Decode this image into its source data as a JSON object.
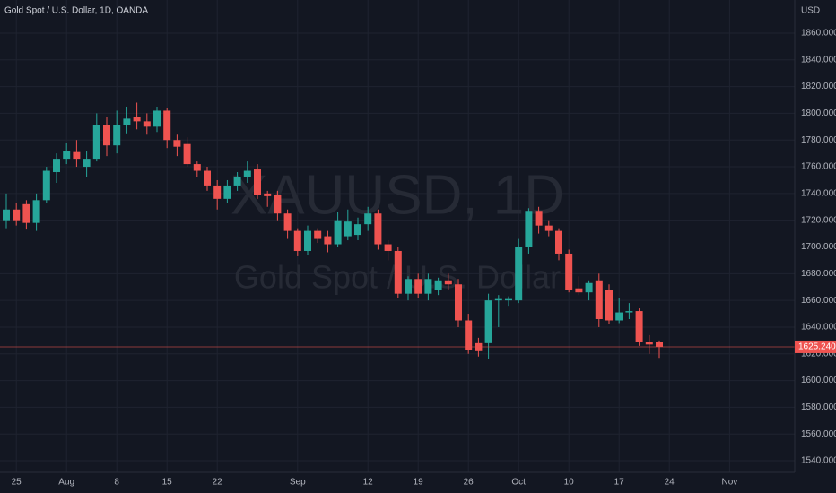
{
  "chart_data": {
    "type": "candlestick",
    "title": "Gold Spot / U.S. Dollar, 1D, OANDA",
    "watermark": {
      "symbol": "XAUUSD, 1D",
      "description": "Gold Spot / U.S. Dollar"
    },
    "y_axis_unit": "USD",
    "categories": [
      null,
      "25",
      null,
      null,
      null,
      null,
      "Aug",
      null,
      null,
      null,
      null,
      "8",
      null,
      null,
      null,
      null,
      "15",
      null,
      null,
      null,
      null,
      "22",
      null,
      null,
      null,
      null,
      null,
      null,
      null,
      "Sep",
      null,
      null,
      null,
      null,
      null,
      null,
      "12",
      null,
      null,
      null,
      null,
      "19",
      null,
      null,
      null,
      null,
      "26",
      null,
      null,
      null,
      null,
      "Oct",
      null,
      null,
      null,
      null,
      "10",
      null,
      null,
      null,
      null,
      "17",
      null,
      null,
      null,
      null,
      "24",
      null,
      null,
      null,
      null,
      null,
      "Nov",
      null,
      null,
      null,
      null,
      null,
      null
    ],
    "open": [
      1720,
      1728,
      1732,
      1718,
      1735,
      1756,
      1766,
      1771,
      1760,
      1766,
      1791,
      1776,
      1791,
      1797,
      1794,
      1790,
      1802,
      1780,
      1777,
      1762,
      1757,
      1746,
      1736,
      1746,
      1752,
      1758,
      1740,
      1739,
      1725,
      1712,
      1697,
      1712,
      1708,
      1702,
      1708,
      1709,
      1717,
      1725,
      1702,
      1697,
      1665,
      1676,
      1665,
      1668,
      1675,
      1672,
      1645,
      1628,
      1628,
      1660,
      1660,
      1660,
      1700,
      1727,
      1716,
      1712,
      1695,
      1669,
      1666,
      1675,
      1668,
      1645,
      1651,
      1652,
      1629,
      1629,
      null,
      null,
      null,
      null,
      null,
      null,
      null,
      null,
      null,
      null,
      null,
      null,
      null
    ],
    "high": [
      1740,
      1733,
      1735,
      1740,
      1760,
      1770,
      1778,
      1780,
      1772,
      1800,
      1797,
      1802,
      1805,
      1808,
      1800,
      1805,
      1804,
      1784,
      1782,
      1764,
      1760,
      1750,
      1750,
      1756,
      1764,
      1762,
      1742,
      1742,
      1728,
      1714,
      1716,
      1714,
      1712,
      1726,
      1728,
      1722,
      1730,
      1728,
      1705,
      1700,
      1678,
      1680,
      1680,
      1677,
      1680,
      1676,
      1650,
      1632,
      1665,
      1664,
      1663,
      1706,
      1729,
      1730,
      1720,
      1714,
      1698,
      1678,
      1675,
      1680,
      1672,
      1662,
      1658,
      1654,
      1634,
      1630,
      null,
      null,
      null,
      null,
      null,
      null,
      null,
      null,
      null,
      null,
      null,
      null,
      null
    ],
    "low": [
      1714,
      1716,
      1713,
      1712,
      1733,
      1748,
      1762,
      1760,
      1752,
      1764,
      1768,
      1770,
      1785,
      1788,
      1784,
      1786,
      1774,
      1768,
      1760,
      1752,
      1742,
      1728,
      1733,
      1742,
      1748,
      1736,
      1730,
      1720,
      1706,
      1693,
      1694,
      1703,
      1696,
      1700,
      1705,
      1705,
      1712,
      1698,
      1690,
      1662,
      1660,
      1662,
      1660,
      1664,
      1668,
      1640,
      1620,
      1618,
      1616,
      1640,
      1656,
      1658,
      1695,
      1710,
      1708,
      1690,
      1666,
      1664,
      1660,
      1640,
      1642,
      1643,
      1646,
      1626,
      1620,
      1617,
      null,
      null,
      null,
      null,
      null,
      null,
      null,
      null,
      null,
      null,
      null,
      null,
      null
    ],
    "close": [
      1728,
      1720,
      1718,
      1735,
      1757,
      1766,
      1772,
      1766,
      1766,
      1791,
      1776,
      1791,
      1796,
      1794,
      1790,
      1802,
      1780,
      1775,
      1762,
      1757,
      1746,
      1736,
      1746,
      1752,
      1757,
      1739,
      1738,
      1725,
      1712,
      1697,
      1712,
      1706,
      1702,
      1720,
      1719,
      1717,
      1725,
      1702,
      1697,
      1665,
      1676,
      1665,
      1676,
      1675,
      1672,
      1645,
      1623,
      1622,
      1660,
      1661,
      1661,
      1700,
      1727,
      1716,
      1712,
      1695,
      1668,
      1666,
      1673,
      1646,
      1645,
      1651,
      1652,
      1629,
      1627,
      1625.24,
      null,
      null,
      null,
      null,
      null,
      null,
      null,
      null,
      null,
      null,
      null,
      null,
      null
    ],
    "ylim": [
      1531.3,
      1884.8
    ],
    "yticks": [
      {
        "value": 1540,
        "label": "1540.000"
      },
      {
        "value": 1560,
        "label": "1560.000"
      },
      {
        "value": 1580,
        "label": "1580.000"
      },
      {
        "value": 1600,
        "label": "1600.000"
      },
      {
        "value": 1620,
        "label": "1620.000"
      },
      {
        "value": 1640,
        "label": "1640.000"
      },
      {
        "value": 1660,
        "label": "1660.000"
      },
      {
        "value": 1680,
        "label": "1680.000"
      },
      {
        "value": 1700,
        "label": "1700.000"
      },
      {
        "value": 1720,
        "label": "1720.000"
      },
      {
        "value": 1740,
        "label": "1740.000"
      },
      {
        "value": 1760,
        "label": "1760.000"
      },
      {
        "value": 1780,
        "label": "1780.000"
      },
      {
        "value": 1800,
        "label": "1800.000"
      },
      {
        "value": 1820,
        "label": "1820.000"
      },
      {
        "value": 1840,
        "label": "1840.000"
      },
      {
        "value": 1860,
        "label": "1860.000"
      }
    ],
    "last_price": {
      "value": 1625.24,
      "label": "1625.240"
    },
    "up_color": "#26a69a",
    "down_color": "#ef5350",
    "grid": true
  }
}
